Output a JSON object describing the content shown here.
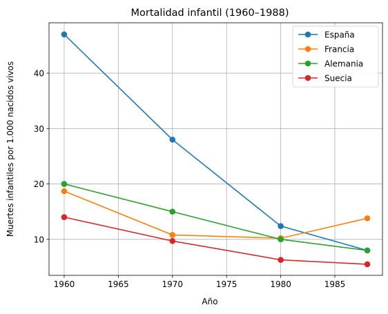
{
  "chart_data": {
    "type": "line",
    "title": "Mortalidad infantil (1960–1988)",
    "xlabel": "Año",
    "ylabel": "Muertes infantiles por 1.000 nacidos vivos",
    "xlim": [
      1958.6,
      1989.4
    ],
    "ylim": [
      3.5,
      49.1
    ],
    "xticks": [
      1960,
      1965,
      1970,
      1975,
      1980,
      1985
    ],
    "yticks": [
      10,
      20,
      30,
      40
    ],
    "grid": true,
    "legend_position": "top-right",
    "x": [
      1960,
      1970,
      1980,
      1988
    ],
    "series": [
      {
        "name": "España",
        "color": "#1f77b4",
        "values": [
          47.0,
          28.0,
          12.4,
          8.0
        ]
      },
      {
        "name": "Francia",
        "color": "#ff7f0e",
        "values": [
          18.7,
          10.8,
          10.2,
          13.8
        ]
      },
      {
        "name": "Alemania",
        "color": "#2ca02c",
        "values": [
          20.0,
          15.0,
          10.0,
          8.0
        ]
      },
      {
        "name": "Suecia",
        "color": "#d62728",
        "values": [
          14.0,
          9.7,
          6.3,
          5.5
        ]
      }
    ]
  }
}
